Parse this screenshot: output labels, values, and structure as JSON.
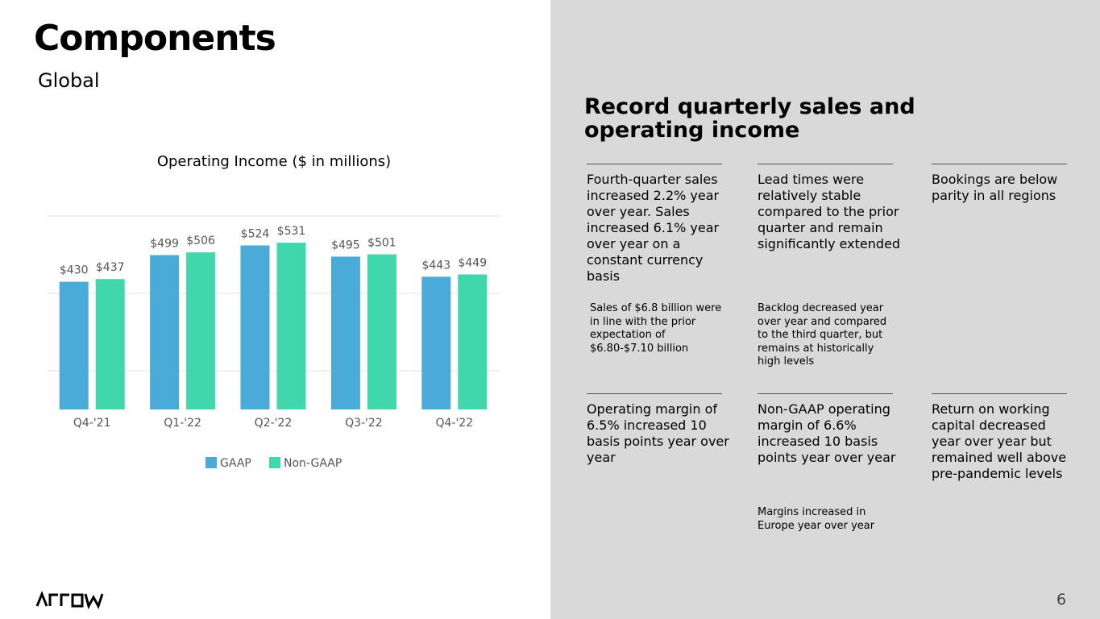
{
  "slide": {
    "title": "Components",
    "subtitle": "Global",
    "heading": "Record quarterly sales and operating income",
    "points": [
      {
        "headline": "Fourth-quarter sales increased 2.2% year over year. Sales increased 6.1% year over year on a constant currency basis",
        "detail": "Sales of $6.8 billion were in line with the prior expectation of $6.80-$7.10 billion"
      },
      {
        "headline": "Lead times were relatively stable compared to the prior quarter and remain significantly extended",
        "detail": "Backlog decreased year over year and compared to the third quarter, but remains at historically high levels"
      },
      {
        "headline": "Bookings are below parity in all regions"
      },
      {
        "headline": "Operating margin of 6.5% increased 10 basis points year over year"
      },
      {
        "headline": "Non-GAAP operating margin of 6.6% increased 10 basis points year over year",
        "detail": "Margins increased in Europe year over year"
      },
      {
        "headline": "Return on working capital decreased year over year but remained well above pre-pandemic levels"
      }
    ],
    "page_number": "6"
  },
  "chart_data": {
    "type": "bar",
    "title": "Operating Income ($ in millions)",
    "categories": [
      "Q4-'21",
      "Q1-'22",
      "Q2-'22",
      "Q3-'22",
      "Q4-'22"
    ],
    "series": [
      {
        "name": "GAAP",
        "color": "#4aabd8",
        "values": [
          430,
          499,
          524,
          495,
          443
        ],
        "value_labels": [
          "$430",
          "$499",
          "$524",
          "$495",
          "$443"
        ]
      },
      {
        "name": "Non-GAAP",
        "color": "#41d7ac",
        "values": [
          437,
          506,
          531,
          501,
          449
        ],
        "value_labels": [
          "$437",
          "$506",
          "$531",
          "$501",
          "$449"
        ]
      }
    ],
    "ylim": [
      100,
      600
    ],
    "gridlines": [
      200,
      400,
      600
    ],
    "grid": true
  }
}
